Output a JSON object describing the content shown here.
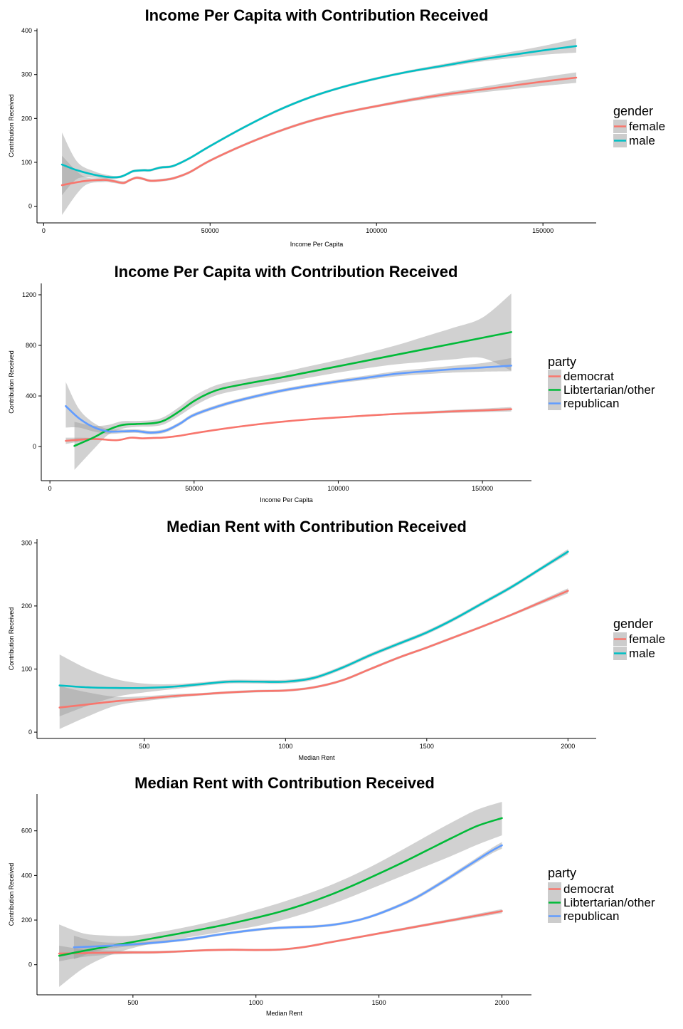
{
  "chart_data": [
    {
      "type": "line",
      "title": "Income Per Capita with Contribution Received",
      "xlabel": "Income Per Capita",
      "ylabel": "Contribution Received",
      "xlim": [
        -2000,
        166000
      ],
      "ylim": [
        -38,
        405
      ],
      "xticks": [
        0,
        50000,
        100000,
        150000
      ],
      "xtick_labels": [
        "0",
        "50000",
        "100000",
        "150000"
      ],
      "yticks": [
        0,
        100,
        200,
        300,
        400
      ],
      "ytick_labels": [
        "0",
        "100",
        "200",
        "300",
        "400"
      ],
      "legend_title": "gender",
      "legend_position": "right",
      "grid": false,
      "series": [
        {
          "name": "female",
          "color": "#F8766D",
          "x": [
            5500,
            12000,
            18000,
            21000,
            24000,
            26000,
            28000,
            30000,
            32000,
            35000,
            38000,
            40000,
            44000,
            50000,
            60000,
            70000,
            80000,
            90000,
            100000,
            110000,
            120000,
            130000,
            140000,
            150000,
            160000
          ],
          "y": [
            48,
            57,
            60,
            57,
            53,
            60,
            65,
            62,
            58,
            59,
            62,
            66,
            78,
            104,
            139,
            169,
            194,
            213,
            228,
            242,
            254,
            264,
            274,
            284,
            293
          ],
          "lower": [
            -20,
            45,
            55,
            53,
            50,
            57,
            62,
            59,
            55,
            56,
            59,
            63,
            75,
            101,
            136,
            166,
            191,
            210,
            225,
            238,
            249,
            258,
            266,
            274,
            281
          ],
          "upper": [
            115,
            68,
            65,
            61,
            57,
            63,
            68,
            65,
            61,
            62,
            65,
            69,
            81,
            107,
            142,
            172,
            197,
            216,
            231,
            246,
            259,
            270,
            282,
            294,
            305
          ]
        },
        {
          "name": "male",
          "color": "#00BFC4",
          "x": [
            5500,
            10000,
            15000,
            20000,
            23000,
            25000,
            27000,
            30000,
            32000,
            35000,
            38000,
            40000,
            44000,
            50000,
            60000,
            70000,
            80000,
            90000,
            100000,
            110000,
            120000,
            130000,
            140000,
            150000,
            160000
          ],
          "y": [
            95,
            82,
            72,
            66,
            67,
            73,
            80,
            82,
            82,
            88,
            90,
            95,
            110,
            137,
            179,
            217,
            248,
            272,
            291,
            307,
            320,
            333,
            344,
            355,
            365
          ],
          "lower": [
            25,
            62,
            65,
            62,
            64,
            70,
            77,
            79,
            79,
            85,
            87,
            92,
            107,
            134,
            176,
            214,
            245,
            269,
            288,
            304,
            316,
            328,
            337,
            345,
            350
          ],
          "upper": [
            168,
            102,
            80,
            70,
            70,
            76,
            83,
            85,
            85,
            91,
            93,
            98,
            113,
            140,
            182,
            220,
            251,
            275,
            294,
            310,
            324,
            338,
            351,
            365,
            382
          ]
        }
      ]
    },
    {
      "type": "line",
      "title": "Income Per Capita with Contribution Received",
      "xlabel": "Income Per Capita",
      "ylabel": "Contribution Received",
      "xlim": [
        -3000,
        167000
      ],
      "ylim": [
        -270,
        1290
      ],
      "xticks": [
        0,
        50000,
        100000,
        150000
      ],
      "xtick_labels": [
        "0",
        "50000",
        "100000",
        "150000"
      ],
      "yticks": [
        0,
        400,
        800,
        1200
      ],
      "ytick_labels": [
        "0",
        "400",
        "800",
        "1200"
      ],
      "legend_title": "party",
      "legend_position": "right",
      "grid": false,
      "series": [
        {
          "name": "democrat",
          "color": "#F8766D",
          "x": [
            5500,
            15000,
            23000,
            28000,
            32000,
            36000,
            40000,
            45000,
            50000,
            60000,
            70000,
            80000,
            90000,
            100000,
            110000,
            120000,
            130000,
            140000,
            150000,
            160000
          ],
          "y": [
            45,
            60,
            50,
            70,
            65,
            68,
            72,
            85,
            105,
            140,
            170,
            195,
            215,
            230,
            245,
            258,
            268,
            278,
            286,
            295
          ],
          "lower": [
            20,
            52,
            44,
            64,
            59,
            62,
            66,
            79,
            99,
            134,
            164,
            189,
            209,
            224,
            238,
            250,
            258,
            266,
            272,
            278
          ],
          "upper": [
            70,
            68,
            56,
            76,
            71,
            74,
            78,
            91,
            111,
            146,
            176,
            201,
            221,
            236,
            252,
            266,
            278,
            290,
            300,
            312
          ]
        },
        {
          "name": "Libtertarian/other",
          "color": "#00BA38",
          "x": [
            8500,
            15000,
            20000,
            25000,
            30000,
            36000,
            40000,
            45000,
            50000,
            55000,
            60000,
            70000,
            80000,
            90000,
            100000,
            110000,
            120000,
            130000,
            140000,
            150000,
            160000
          ],
          "y": [
            5,
            70,
            130,
            170,
            178,
            185,
            210,
            280,
            360,
            420,
            460,
            505,
            545,
            590,
            635,
            680,
            725,
            770,
            815,
            860,
            905
          ],
          "lower": [
            -185,
            -25,
            90,
            140,
            155,
            160,
            180,
            245,
            320,
            380,
            420,
            465,
            505,
            545,
            585,
            620,
            650,
            670,
            690,
            700,
            600
          ],
          "upper": [
            195,
            165,
            170,
            200,
            202,
            210,
            240,
            315,
            400,
            460,
            500,
            545,
            585,
            635,
            685,
            740,
            800,
            870,
            940,
            1020,
            1210
          ]
        },
        {
          "name": "republican",
          "color": "#619CFF",
          "x": [
            5500,
            10000,
            15000,
            20000,
            25000,
            30000,
            35000,
            40000,
            45000,
            50000,
            60000,
            70000,
            80000,
            90000,
            100000,
            110000,
            120000,
            130000,
            140000,
            150000,
            160000
          ],
          "y": [
            320,
            225,
            155,
            120,
            120,
            122,
            110,
            125,
            180,
            250,
            330,
            390,
            440,
            480,
            515,
            545,
            575,
            595,
            612,
            625,
            640
          ],
          "lower": [
            150,
            150,
            120,
            100,
            105,
            108,
            96,
            111,
            166,
            236,
            316,
            376,
            426,
            466,
            500,
            528,
            555,
            572,
            585,
            592,
            595
          ],
          "upper": [
            510,
            300,
            190,
            140,
            135,
            136,
            124,
            139,
            194,
            264,
            344,
            404,
            454,
            494,
            530,
            562,
            595,
            618,
            639,
            660,
            700
          ]
        }
      ]
    },
    {
      "type": "line",
      "title": "Median Rent with Contribution Received",
      "xlabel": "Median Rent",
      "ylabel": "Contribution Received",
      "xlim": [
        120,
        2100
      ],
      "ylim": [
        -10,
        306
      ],
      "xticks": [
        500,
        1000,
        1500,
        2000
      ],
      "xtick_labels": [
        "500",
        "1000",
        "1500",
        "2000"
      ],
      "yticks": [
        0,
        100,
        200,
        300
      ],
      "ytick_labels": [
        "0",
        "100",
        "200",
        "300"
      ],
      "legend_title": "gender",
      "legend_position": "right",
      "grid": false,
      "series": [
        {
          "name": "female",
          "color": "#F8766D",
          "x": [
            200,
            300,
            400,
            500,
            600,
            700,
            800,
            900,
            1000,
            1100,
            1200,
            1300,
            1400,
            1500,
            1600,
            1700,
            1800,
            1900,
            2000
          ],
          "y": [
            39,
            44,
            49,
            53,
            57,
            60,
            63,
            65,
            66,
            71,
            82,
            100,
            118,
            134,
            151,
            168,
            186,
            205,
            224
          ],
          "lower": [
            5,
            25,
            42,
            49,
            54,
            58,
            61,
            63,
            64,
            69,
            80,
            98,
            116,
            132,
            149,
            166,
            184,
            202,
            220
          ],
          "upper": [
            73,
            63,
            56,
            57,
            60,
            62,
            65,
            67,
            68,
            73,
            84,
            102,
            120,
            136,
            153,
            170,
            188,
            208,
            228
          ]
        },
        {
          "name": "male",
          "color": "#00BFC4",
          "x": [
            200,
            300,
            400,
            500,
            600,
            700,
            800,
            900,
            1000,
            1100,
            1200,
            1300,
            1400,
            1500,
            1600,
            1700,
            1800,
            1900,
            2000
          ],
          "y": [
            74,
            71,
            70,
            70,
            72,
            76,
            80,
            80,
            80,
            86,
            102,
            122,
            140,
            158,
            180,
            205,
            230,
            258,
            286
          ],
          "lower": [
            25,
            42,
            56,
            63,
            68,
            73,
            77,
            77,
            77,
            83,
            99,
            119,
            137,
            155,
            177,
            202,
            227,
            255,
            282
          ],
          "upper": [
            123,
            100,
            84,
            77,
            76,
            79,
            83,
            83,
            83,
            89,
            105,
            125,
            143,
            161,
            183,
            208,
            233,
            261,
            290
          ]
        }
      ]
    },
    {
      "type": "line",
      "title": "Median Rent with Contribution Received",
      "xlabel": "Median Rent",
      "ylabel": "Contribution Received",
      "xlim": [
        110,
        2120
      ],
      "ylim": [
        -135,
        765
      ],
      "xticks": [
        500,
        1000,
        1500,
        2000
      ],
      "xtick_labels": [
        "500",
        "1000",
        "1500",
        "2000"
      ],
      "yticks": [
        0,
        200,
        400,
        600
      ],
      "ytick_labels": [
        "0",
        "200",
        "400",
        "600"
      ],
      "legend_title": "party",
      "legend_position": "right",
      "grid": false,
      "series": [
        {
          "name": "democrat",
          "color": "#F8766D",
          "x": [
            200,
            300,
            400,
            500,
            600,
            700,
            800,
            900,
            1000,
            1100,
            1200,
            1300,
            1400,
            1500,
            1600,
            1700,
            1800,
            1900,
            2000
          ],
          "y": [
            50,
            52,
            54,
            55,
            56,
            60,
            65,
            67,
            66,
            68,
            80,
            100,
            120,
            140,
            160,
            180,
            200,
            220,
            240
          ],
          "lower": [
            15,
            35,
            44,
            48,
            50,
            55,
            60,
            62,
            61,
            63,
            75,
            95,
            115,
            135,
            154,
            174,
            193,
            212,
            231
          ],
          "upper": [
            85,
            69,
            64,
            62,
            62,
            65,
            70,
            72,
            71,
            73,
            85,
            105,
            125,
            145,
            166,
            186,
            207,
            228,
            249
          ]
        },
        {
          "name": "Libtertarian/other",
          "color": "#00BA38",
          "x": [
            200,
            300,
            400,
            500,
            600,
            700,
            800,
            900,
            1000,
            1100,
            1200,
            1300,
            1400,
            1500,
            1600,
            1700,
            1800,
            1900,
            2000
          ],
          "y": [
            40,
            62,
            82,
            102,
            122,
            142,
            163,
            185,
            210,
            238,
            272,
            312,
            358,
            408,
            460,
            515,
            570,
            622,
            657
          ],
          "lower": [
            -100,
            -15,
            40,
            75,
            100,
            118,
            136,
            153,
            172,
            198,
            230,
            268,
            310,
            355,
            400,
            445,
            490,
            538,
            580
          ],
          "upper": [
            180,
            140,
            130,
            130,
            145,
            165,
            188,
            215,
            245,
            278,
            314,
            355,
            403,
            458,
            518,
            580,
            640,
            695,
            730
          ]
        },
        {
          "name": "republican",
          "color": "#619CFF",
          "x": [
            260,
            350,
            450,
            550,
            650,
            750,
            850,
            950,
            1050,
            1150,
            1250,
            1350,
            1450,
            1550,
            1650,
            1750,
            1850,
            1950,
            2000
          ],
          "y": [
            78,
            82,
            88,
            95,
            105,
            118,
            135,
            150,
            162,
            168,
            172,
            185,
            210,
            250,
            300,
            365,
            435,
            505,
            535
          ],
          "lower": [
            25,
            60,
            78,
            88,
            99,
            112,
            129,
            144,
            156,
            162,
            166,
            179,
            204,
            243,
            292,
            356,
            425,
            493,
            520
          ],
          "upper": [
            130,
            104,
            98,
            102,
            111,
            124,
            141,
            156,
            168,
            174,
            178,
            191,
            216,
            257,
            308,
            374,
            445,
            517,
            550
          ]
        }
      ]
    }
  ]
}
